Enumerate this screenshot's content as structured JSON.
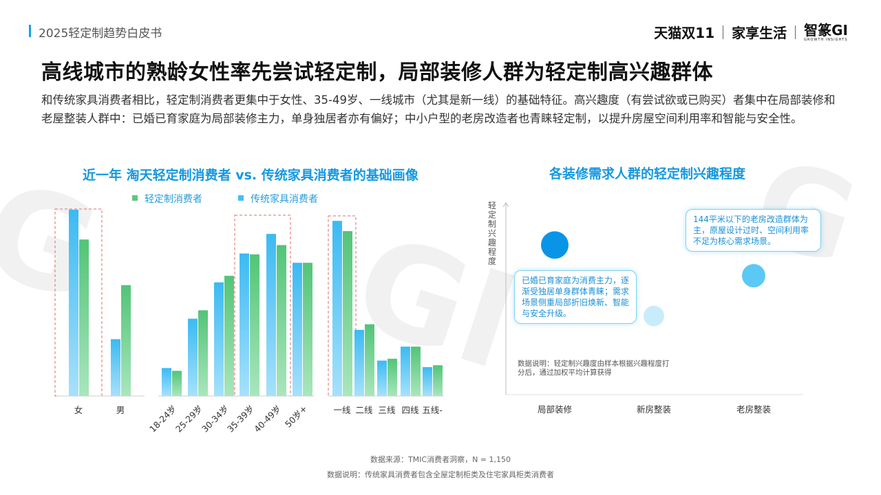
{
  "header": {
    "title": "2025轻定制趋势白皮书",
    "brands": [
      "天猫双11",
      "家享生活",
      "智篆GI"
    ],
    "brand_sub": "GROWTH INSIGHTS"
  },
  "headline": "高线城市的熟龄女性率先尝试轻定制，局部装修人群为轻定制高兴趣群体",
  "lead": "和传统家具消费者相比，轻定制消费者更集中于女性、35-49岁、一线城市（尤其是新一线）的基础特征。高兴趣度（有尝试欲或已购买）者集中在局部装修和老屋整装人群中：已婚已育家庭为局部装修主力，单身独居者亦有偏好；中小户型的老房改造者也青睐轻定制，以提升房屋空间利用率和智能与安全性。",
  "footnotes": {
    "source": "数据来源：TMIC消费者洞察，N = 1,150",
    "note": "数据说明：传统家具消费者包含全屋定制柜类及住宅家具柜类消费者"
  },
  "colors": {
    "green": "#5cc97e",
    "blue": "#45bff4",
    "title_blue": "#1598e0"
  },
  "chart_data": [
    {
      "type": "bar",
      "title": "近一年 淘天轻定制消费者 vs. 传统家具消费者的基础画像",
      "legend": [
        "轻定制消费者",
        "传统家具消费者"
      ],
      "groups": [
        {
          "categories": [
            "女",
            "男"
          ]
        },
        {
          "categories": [
            "18-24岁",
            "25-29岁",
            "30-34岁",
            "35-39岁",
            "40-49岁",
            "50岁+"
          ]
        },
        {
          "categories": [
            "一线",
            "二线",
            "三线",
            "四线",
            "五线-"
          ]
        }
      ],
      "categories": [
        "女",
        "男",
        "18-24岁",
        "25-29岁",
        "30-34岁",
        "35-39岁",
        "40-49岁",
        "50岁+",
        "一线",
        "二线",
        "三线",
        "四线",
        "五线-"
      ],
      "series": [
        {
          "name": "传统家具消费者",
          "values": [
            100,
            30.5,
            15,
            41.5,
            61,
            76.5,
            87,
            71.5,
            94,
            35.5,
            19,
            26.5,
            15.5
          ]
        },
        {
          "name": "轻定制消费者",
          "values": [
            84,
            59.5,
            13.5,
            46,
            64.5,
            76,
            81,
            71.5,
            88.5,
            38.5,
            20,
            26.5,
            16.5
          ]
        }
      ],
      "highlighted": [
        "女",
        "35-39岁",
        "40-49岁",
        "一线"
      ],
      "ylim": [
        0,
        100
      ]
    },
    {
      "type": "scatter",
      "title": "各装修需求人群的轻定制兴趣程度",
      "ylabel": "轻定制兴趣程度",
      "categories": [
        "局部装修",
        "新房整装",
        "老房整装"
      ],
      "points": [
        {
          "category": "局部装修",
          "y": 0.78,
          "size": "large",
          "color": "#0a94e8"
        },
        {
          "category": "新房整装",
          "y": 0.41,
          "size": "small",
          "color": "#c9ecfb"
        },
        {
          "category": "老房整装",
          "y": 0.62,
          "size": "medium",
          "color": "#5cc8f6"
        }
      ],
      "callouts": [
        "已婚已育家庭为消费主力，逐渐受独居单身群体青睐；需求场景侧重局部折旧焕新、智能与安全升级。",
        "144平米以下的老房改造群体为主，原屋设计过时、空间利用率不足为核心需求场景。"
      ],
      "note": "数据说明：轻定制兴趣度由样本根据兴趣程度打分后，通过加权平均计算获得"
    }
  ]
}
